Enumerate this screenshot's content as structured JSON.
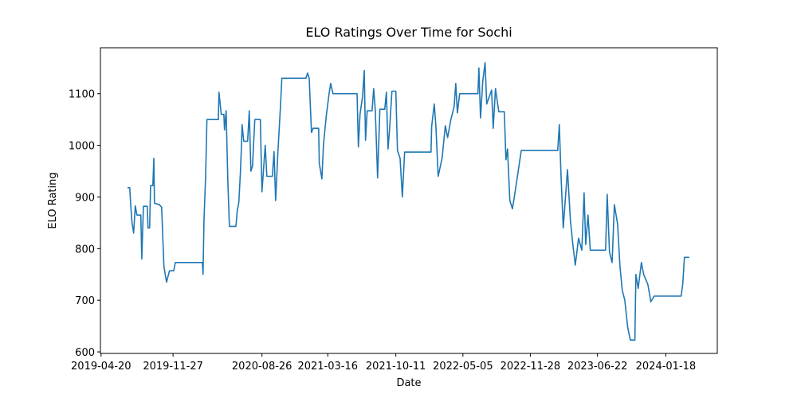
{
  "chart_data": {
    "type": "line",
    "title": "ELO Ratings Over Time for Sochi",
    "x_label": "Date",
    "y_label": "ELO Rating",
    "xlim": [
      "2019-04-18",
      "2024-06-24"
    ],
    "ylim": [
      597,
      1189
    ],
    "xticks": [
      "2019-04-20",
      "2019-11-27",
      "2020-08-26",
      "2021-03-16",
      "2021-10-11",
      "2022-05-05",
      "2022-11-28",
      "2023-06-22",
      "2024-01-18"
    ],
    "yticks": [
      600,
      700,
      800,
      900,
      1000,
      1100
    ],
    "x": [
      "2019-07-10",
      "2019-07-17",
      "2019-07-20",
      "2019-07-24",
      "2019-07-29",
      "2019-08-03",
      "2019-08-08",
      "2019-08-20",
      "2019-08-23",
      "2019-08-28",
      "2019-09-09",
      "2019-09-11",
      "2019-09-16",
      "2019-09-19",
      "2019-09-26",
      "2019-09-29",
      "2019-10-01",
      "2019-10-16",
      "2019-10-23",
      "2019-10-25",
      "2019-10-30",
      "2019-11-07",
      "2019-11-16",
      "2019-11-29",
      "2019-12-04",
      "2020-02-25",
      "2020-02-27",
      "2020-03-01",
      "2020-03-06",
      "2020-03-10",
      "2020-04-14",
      "2020-04-16",
      "2020-04-23",
      "2020-05-01",
      "2020-05-03",
      "2020-05-08",
      "2020-05-13",
      "2020-05-18",
      "2020-06-07",
      "2020-06-11",
      "2020-06-16",
      "2020-06-21",
      "2020-06-24",
      "2020-06-26",
      "2020-07-01",
      "2020-07-13",
      "2020-07-18",
      "2020-07-23",
      "2020-07-28",
      "2020-08-04",
      "2020-08-21",
      "2020-08-26",
      "2020-09-05",
      "2020-09-10",
      "2020-09-27",
      "2020-10-02",
      "2020-10-07",
      "2020-10-14",
      "2020-10-22",
      "2020-10-26",
      "2021-01-08",
      "2021-01-13",
      "2021-01-18",
      "2021-01-25",
      "2021-01-30",
      "2021-02-16",
      "2021-02-18",
      "2021-02-26",
      "2021-03-03",
      "2021-03-12",
      "2021-03-20",
      "2021-03-25",
      "2021-04-01",
      "2021-06-14",
      "2021-06-18",
      "2021-06-23",
      "2021-07-01",
      "2021-07-06",
      "2021-07-10",
      "2021-07-15",
      "2021-07-30",
      "2021-08-04",
      "2021-08-09",
      "2021-08-16",
      "2021-08-23",
      "2021-09-07",
      "2021-09-12",
      "2021-09-17",
      "2021-09-22",
      "2021-09-29",
      "2021-10-11",
      "2021-10-16",
      "2021-10-24",
      "2021-10-31",
      "2021-11-07",
      "2022-01-27",
      "2022-01-29",
      "2022-02-06",
      "2022-02-11",
      "2022-02-18",
      "2022-03-02",
      "2022-03-12",
      "2022-03-19",
      "2022-03-29",
      "2022-04-08",
      "2022-04-13",
      "2022-04-18",
      "2022-04-25",
      "2022-06-20",
      "2022-06-23",
      "2022-06-28",
      "2022-07-05",
      "2022-07-12",
      "2022-07-17",
      "2022-08-01",
      "2022-08-06",
      "2022-08-13",
      "2022-08-23",
      "2022-09-09",
      "2022-09-14",
      "2022-09-19",
      "2022-09-26",
      "2022-10-04",
      "2022-10-11",
      "2022-10-21",
      "2022-10-31",
      "2023-02-20",
      "2023-02-25",
      "2023-03-02",
      "2023-03-09",
      "2023-03-22",
      "2023-03-31",
      "2023-04-08",
      "2023-04-15",
      "2023-04-25",
      "2023-05-05",
      "2023-05-12",
      "2023-05-17",
      "2023-05-24",
      "2023-05-31",
      "2023-07-17",
      "2023-07-22",
      "2023-07-29",
      "2023-08-06",
      "2023-08-13",
      "2023-08-23",
      "2023-08-30",
      "2023-09-06",
      "2023-09-14",
      "2023-09-23",
      "2023-10-01",
      "2023-10-15",
      "2023-10-18",
      "2023-10-25",
      "2023-11-04",
      "2023-11-11",
      "2023-11-24",
      "2023-12-03",
      "2023-12-13",
      "2024-03-05",
      "2024-03-10",
      "2024-03-15",
      "2024-03-30"
    ],
    "series": [
      {
        "color": "#1f77b4",
        "values": [
          918,
          918,
          885,
          850,
          830,
          883,
          865,
          865,
          780,
          882,
          882,
          840,
          840,
          922,
          922,
          975,
          888,
          885,
          880,
          847,
          765,
          735,
          757,
          757,
          773,
          773,
          750,
          855,
          940,
          1050,
          1050,
          1103,
          1060,
          1060,
          1030,
          1067,
          935,
          843,
          843,
          873,
          890,
          950,
          1000,
          1040,
          1008,
          1008,
          1067,
          950,
          960,
          1050,
          1050,
          910,
          1000,
          940,
          940,
          988,
          893,
          988,
          1078,
          1130,
          1130,
          1140,
          1130,
          1025,
          1033,
          1033,
          965,
          935,
          1003,
          1060,
          1100,
          1120,
          1100,
          1100,
          997,
          1060,
          1095,
          1145,
          1010,
          1067,
          1067,
          1110,
          1067,
          937,
          1070,
          1070,
          1103,
          993,
          1033,
          1105,
          1105,
          990,
          975,
          900,
          987,
          987,
          1037,
          1080,
          1037,
          940,
          975,
          1038,
          1015,
          1050,
          1075,
          1120,
          1063,
          1100,
          1100,
          1150,
          1053,
          1125,
          1160,
          1080,
          1107,
          1033,
          1110,
          1065,
          1065,
          972,
          993,
          893,
          877,
          905,
          947,
          990,
          990,
          1040,
          945,
          840,
          953,
          855,
          805,
          768,
          820,
          797,
          908,
          808,
          865,
          797,
          797,
          905,
          793,
          773,
          885,
          847,
          767,
          720,
          700,
          647,
          623,
          623,
          750,
          723,
          773,
          750,
          730,
          697,
          708,
          708,
          732,
          783,
          783
        ]
      }
    ]
  }
}
